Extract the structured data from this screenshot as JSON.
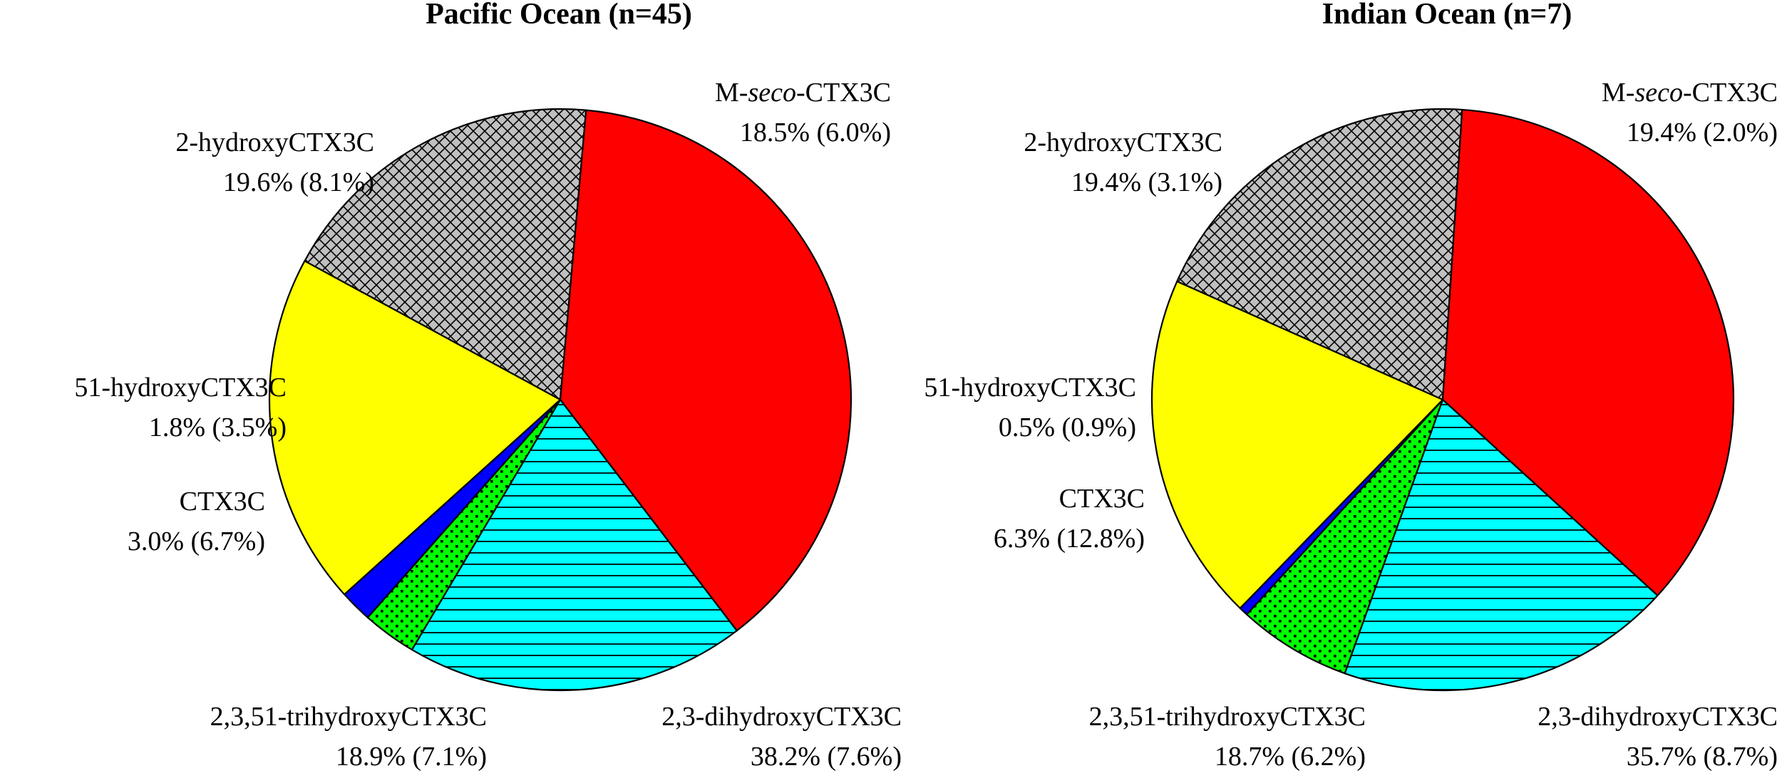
{
  "chart_data": [
    {
      "type": "pie",
      "title": "Pacific Ocean (n=45)",
      "slices": [
        {
          "name_pre": "M-",
          "name_em": "seco",
          "name_post": "-CTX3C",
          "value": 18.5,
          "value_label": "18.5% (6.0%)",
          "color": "#c0c0c0",
          "pattern": "crosshatch"
        },
        {
          "name_pre": "2,3-dihydroxyCTX3C",
          "name_em": "",
          "name_post": "",
          "value": 38.2,
          "value_label": "38.2% (7.6%)",
          "color": "#ff0000",
          "pattern": "solid"
        },
        {
          "name_pre": "2,3,51-trihydroxyCTX3C",
          "name_em": "",
          "name_post": "",
          "value": 18.9,
          "value_label": "18.9% (7.1%)",
          "color": "#00ffff",
          "pattern": "horizontal-lines"
        },
        {
          "name_pre": "CTX3C",
          "name_em": "",
          "name_post": "",
          "value": 3.0,
          "value_label": "3.0% (6.7%)",
          "color": "#00ff00",
          "pattern": "dots"
        },
        {
          "name_pre": "51-hydroxyCTX3C",
          "name_em": "",
          "name_post": "",
          "value": 1.8,
          "value_label": "1.8% (3.5%)",
          "color": "#0000ff",
          "pattern": "solid"
        },
        {
          "name_pre": "2-hydroxyCTX3C",
          "name_em": "",
          "name_post": "",
          "value": 19.6,
          "value_label": "19.6% (8.1%)",
          "color": "#ffff00",
          "pattern": "solid"
        }
      ]
    },
    {
      "type": "pie",
      "title": "Indian Ocean (n=7)",
      "slices": [
        {
          "name_pre": "M-",
          "name_em": "seco",
          "name_post": "-CTX3C",
          "value": 19.4,
          "value_label": "19.4% (2.0%)",
          "color": "#c0c0c0",
          "pattern": "crosshatch"
        },
        {
          "name_pre": "2,3-dihydroxyCTX3C",
          "name_em": "",
          "name_post": "",
          "value": 35.7,
          "value_label": "35.7% (8.7%)",
          "color": "#ff0000",
          "pattern": "solid"
        },
        {
          "name_pre": "2,3,51-trihydroxyCTX3C",
          "name_em": "",
          "name_post": "",
          "value": 18.7,
          "value_label": "18.7% (6.2%)",
          "color": "#00ffff",
          "pattern": "horizontal-lines"
        },
        {
          "name_pre": "CTX3C",
          "name_em": "",
          "name_post": "",
          "value": 6.3,
          "value_label": "6.3% (12.8%)",
          "color": "#00ff00",
          "pattern": "dots"
        },
        {
          "name_pre": "51-hydroxyCTX3C",
          "name_em": "",
          "name_post": "",
          "value": 0.5,
          "value_label": "0.5% (0.9%)",
          "color": "#0000ff",
          "pattern": "solid"
        },
        {
          "name_pre": "2-hydroxyCTX3C",
          "name_em": "",
          "name_post": "",
          "value": 19.4,
          "value_label": "19.4% (3.1%)",
          "color": "#ffff00",
          "pattern": "solid"
        }
      ]
    }
  ]
}
